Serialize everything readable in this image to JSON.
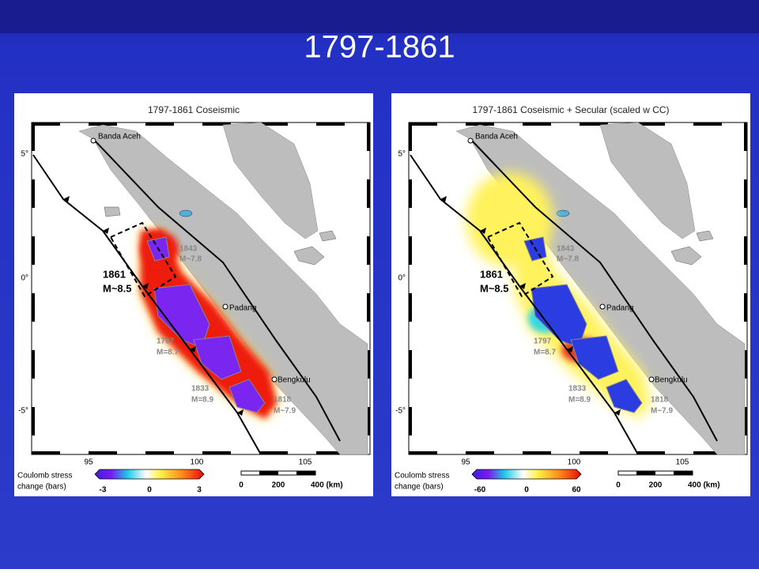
{
  "title": "1797-1861",
  "panels": [
    {
      "title": "1797-1861   Coseismic",
      "places": [
        "Banda Aceh",
        "Padang",
        "Bengkulu"
      ],
      "events": [
        {
          "year": "1861",
          "magnitude": "M~8.5"
        },
        {
          "year": "1843",
          "magnitude": "M~7.8"
        },
        {
          "year": "1797",
          "magnitude": "M=8.7"
        },
        {
          "year": "1833",
          "magnitude": "M=8.9"
        },
        {
          "year": "1818",
          "magnitude": "M~7.9"
        }
      ],
      "lat_labels": [
        "5°",
        "0°",
        "-5°"
      ],
      "lon_labels": [
        "95",
        "100",
        "105"
      ],
      "colorbar": {
        "label_lines": [
          "Coulomb stress",
          "change (bars)"
        ],
        "ticks": [
          "-3",
          "0",
          "3"
        ]
      },
      "scale": {
        "ticks": [
          "0",
          "200",
          "400 (km)"
        ]
      }
    },
    {
      "title": "1797-1861 Coseismic + Secular (scaled w CC)",
      "places": [
        "Banda Aceh",
        "Padang",
        "Bengkulu"
      ],
      "events": [
        {
          "year": "1861",
          "magnitude": "M~8.5"
        },
        {
          "year": "1843",
          "magnitude": "M~7.8"
        },
        {
          "year": "1797",
          "magnitude": "M=8.7"
        },
        {
          "year": "1833",
          "magnitude": "M=8.9"
        },
        {
          "year": "1818",
          "magnitude": "M~7.9"
        }
      ],
      "lat_labels": [
        "5°",
        "0°",
        "-5°"
      ],
      "lon_labels": [
        "95",
        "100",
        "105"
      ],
      "colorbar": {
        "label_lines": [
          "Coulomb stress",
          "change (bars)"
        ],
        "ticks": [
          "-60",
          "0",
          "60"
        ]
      },
      "scale": {
        "ticks": [
          "0",
          "200",
          "400 (km)"
        ]
      }
    }
  ]
}
